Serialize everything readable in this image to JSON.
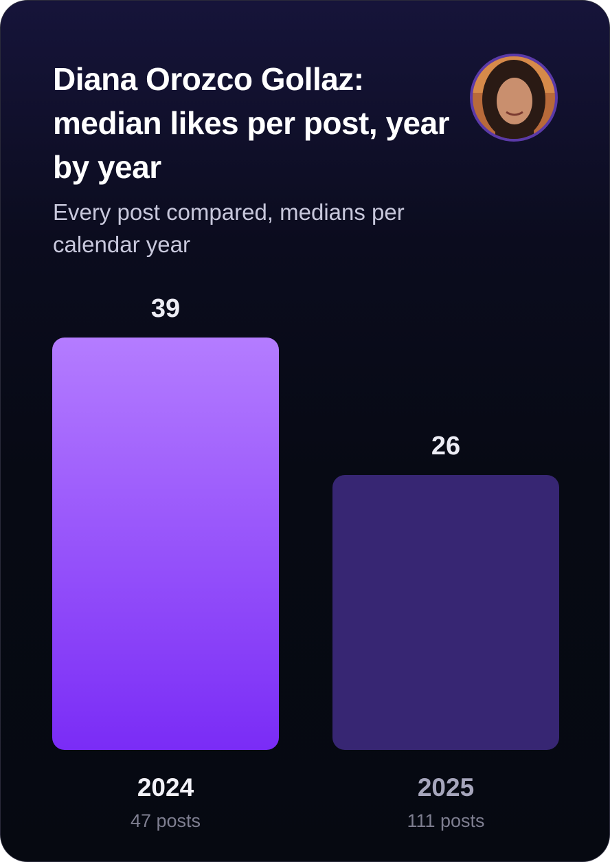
{
  "chart_data": {
    "type": "bar",
    "title": "Diana Orozco Gollaz: median likes per post, year by year",
    "subtitle": "Every post compared, medians per calendar year",
    "categories": [
      "2024",
      "2025"
    ],
    "values": [
      39,
      26
    ],
    "post_counts": [
      "47 posts",
      "111 posts"
    ],
    "colors": [
      [
        "#b47cff",
        "#7a2cf6"
      ],
      "#372673"
    ],
    "category_colors": [
      "#f2f2f8",
      "#a6a6bc"
    ]
  }
}
